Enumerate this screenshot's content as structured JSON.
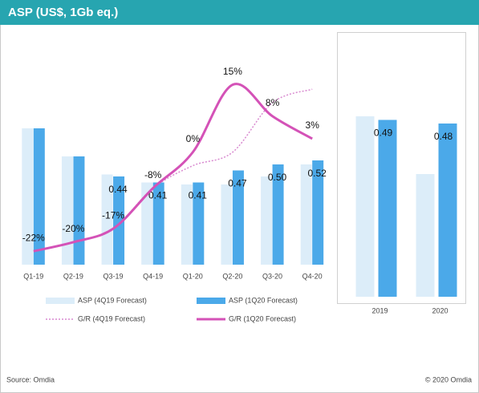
{
  "header": {
    "title": "ASP (US$, 1Gb eq.)"
  },
  "chart_data": [
    {
      "type": "bar",
      "categories": [
        "Q1-19",
        "Q2-19",
        "Q3-19",
        "Q4-19",
        "Q1-20",
        "Q2-20",
        "Q3-20",
        "Q4-20"
      ],
      "ylim": [
        0,
        0.92
      ],
      "y2lim": [
        -25,
        16
      ],
      "series": [
        {
          "name": "ASP (4Q19 Forecast)",
          "color": "#dcedf9",
          "values": [
            0.68,
            0.54,
            0.45,
            0.41,
            0.4,
            0.4,
            0.44,
            0.5
          ]
        },
        {
          "name": "ASP (1Q20 Forecast)",
          "color": "#4ba9e9",
          "values": [
            0.68,
            0.54,
            0.44,
            0.41,
            0.41,
            0.47,
            0.5,
            0.52
          ],
          "value_labels": [
            null,
            null,
            "0.44",
            "0.41",
            "0.41",
            "0.47",
            "0.50",
            "0.52"
          ]
        },
        {
          "name": "G/R (4Q19 Forecast)",
          "type": "line",
          "axis": "y2",
          "color": "#d98ad0",
          "dash": true,
          "values": [
            -22,
            -20,
            -17,
            -8,
            -3,
            0,
            11,
            14
          ]
        },
        {
          "name": "G/R (1Q20 Forecast)",
          "type": "line",
          "axis": "y2",
          "color": "#d452b7",
          "values": [
            -22,
            -20,
            -17,
            -8,
            0,
            15,
            8,
            3
          ],
          "value_labels": [
            "-22%",
            "-20%",
            "-17%",
            "-8%",
            "0%",
            "15%",
            "8%",
            "3%"
          ]
        }
      ]
    },
    {
      "type": "bar",
      "categories": [
        "2019",
        "2020"
      ],
      "ylim": [
        0,
        0.6
      ],
      "series": [
        {
          "color": "#dcedf9",
          "values": [
            0.5,
            0.34
          ]
        },
        {
          "color": "#4ba9e9",
          "values": [
            0.49,
            0.48
          ],
          "value_labels": [
            "0.49",
            "0.48"
          ]
        }
      ]
    }
  ],
  "footer": {
    "source": "Source: Omdia",
    "copyright": "© 2020 Omdia"
  }
}
